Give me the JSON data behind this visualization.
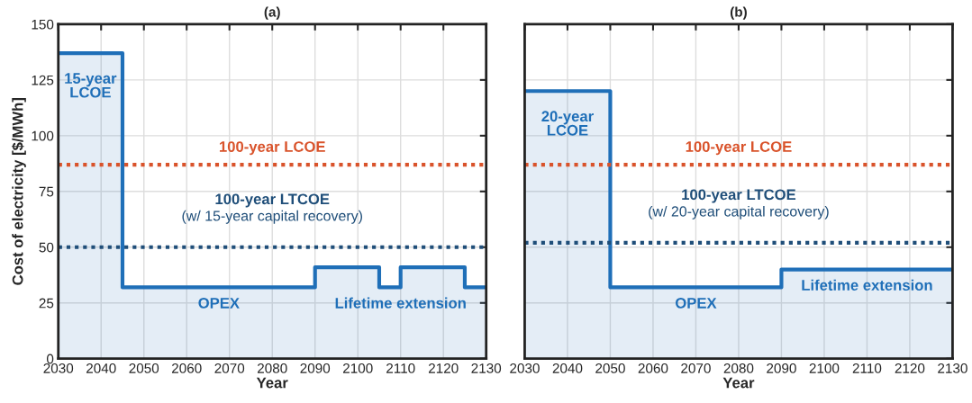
{
  "chart_data": [
    {
      "type": "area",
      "title": "(a)",
      "xlabel": "Year",
      "ylabel": "Cost of electricity [$/MWh]",
      "x": [
        2030,
        2045,
        2045,
        2090,
        2090,
        2105,
        2105,
        2110,
        2110,
        2125,
        2125,
        2130
      ],
      "series": [
        {
          "color": "#1f6fb8",
          "values": [
            137,
            137,
            32,
            32,
            41,
            41,
            32,
            32,
            41,
            41,
            32,
            32
          ]
        }
      ],
      "xlim": [
        2030,
        2130
      ],
      "xticks": [
        2030,
        2040,
        2050,
        2060,
        2070,
        2080,
        2090,
        2100,
        2110,
        2120,
        2130
      ],
      "ylim": [
        0,
        150
      ],
      "yticks": [
        0,
        25,
        50,
        75,
        100,
        125,
        150
      ],
      "grid": true,
      "ref_lines": [
        {
          "axis": "y",
          "value": 87,
          "label": "100-year LCOE",
          "color": "#d9532b",
          "line_style": "dotted"
        },
        {
          "axis": "y",
          "value": 50,
          "label": "100-year LTCOE",
          "color": "#1f4e79",
          "line_style": "dotted"
        }
      ],
      "annotations": [
        {
          "text": "15-year\nLCOE",
          "x": 2037.5,
          "y": 137
        },
        {
          "text": "OPEX",
          "x": 2067.5,
          "y": 32
        },
        {
          "text": "Lifetime extension",
          "x": 2110,
          "y": 32
        },
        "(w/ 15-year capital recovery)"
      ]
    },
    {
      "type": "area",
      "title": "(b)",
      "xlabel": "Year",
      "x": [
        2030,
        2050,
        2050,
        2090,
        2090,
        2130
      ],
      "series": [
        {
          "color": "#1f6fb8",
          "values": [
            120,
            120,
            32,
            32,
            40,
            40
          ]
        }
      ],
      "xlim": [
        2030,
        2130
      ],
      "xticks": [
        2030,
        2040,
        2050,
        2060,
        2070,
        2080,
        2090,
        2100,
        2110,
        2120,
        2130
      ],
      "ylim": [
        0,
        150
      ],
      "yticks": [
        0,
        25,
        50,
        75,
        100,
        125,
        150
      ],
      "grid": true,
      "tick_labels": "x",
      "ref_lines": [
        {
          "axis": "y",
          "value": 87,
          "label": "100-year LCOE",
          "color": "#d9532b",
          "line_style": "dotted"
        },
        {
          "axis": "y",
          "value": 52,
          "label": "100-year LTCOE",
          "color": "#1f4e79",
          "line_style": "dotted"
        }
      ],
      "annotations": [
        {
          "text": "20-year\nLCOE",
          "x": 2040,
          "y": 120
        },
        {
          "text": "OPEX",
          "x": 2070,
          "y": 32
        },
        {
          "text": "Lifetime extension",
          "x": 2110,
          "y": 40
        },
        "(w/ 20-year capital recovery)"
      ]
    }
  ]
}
